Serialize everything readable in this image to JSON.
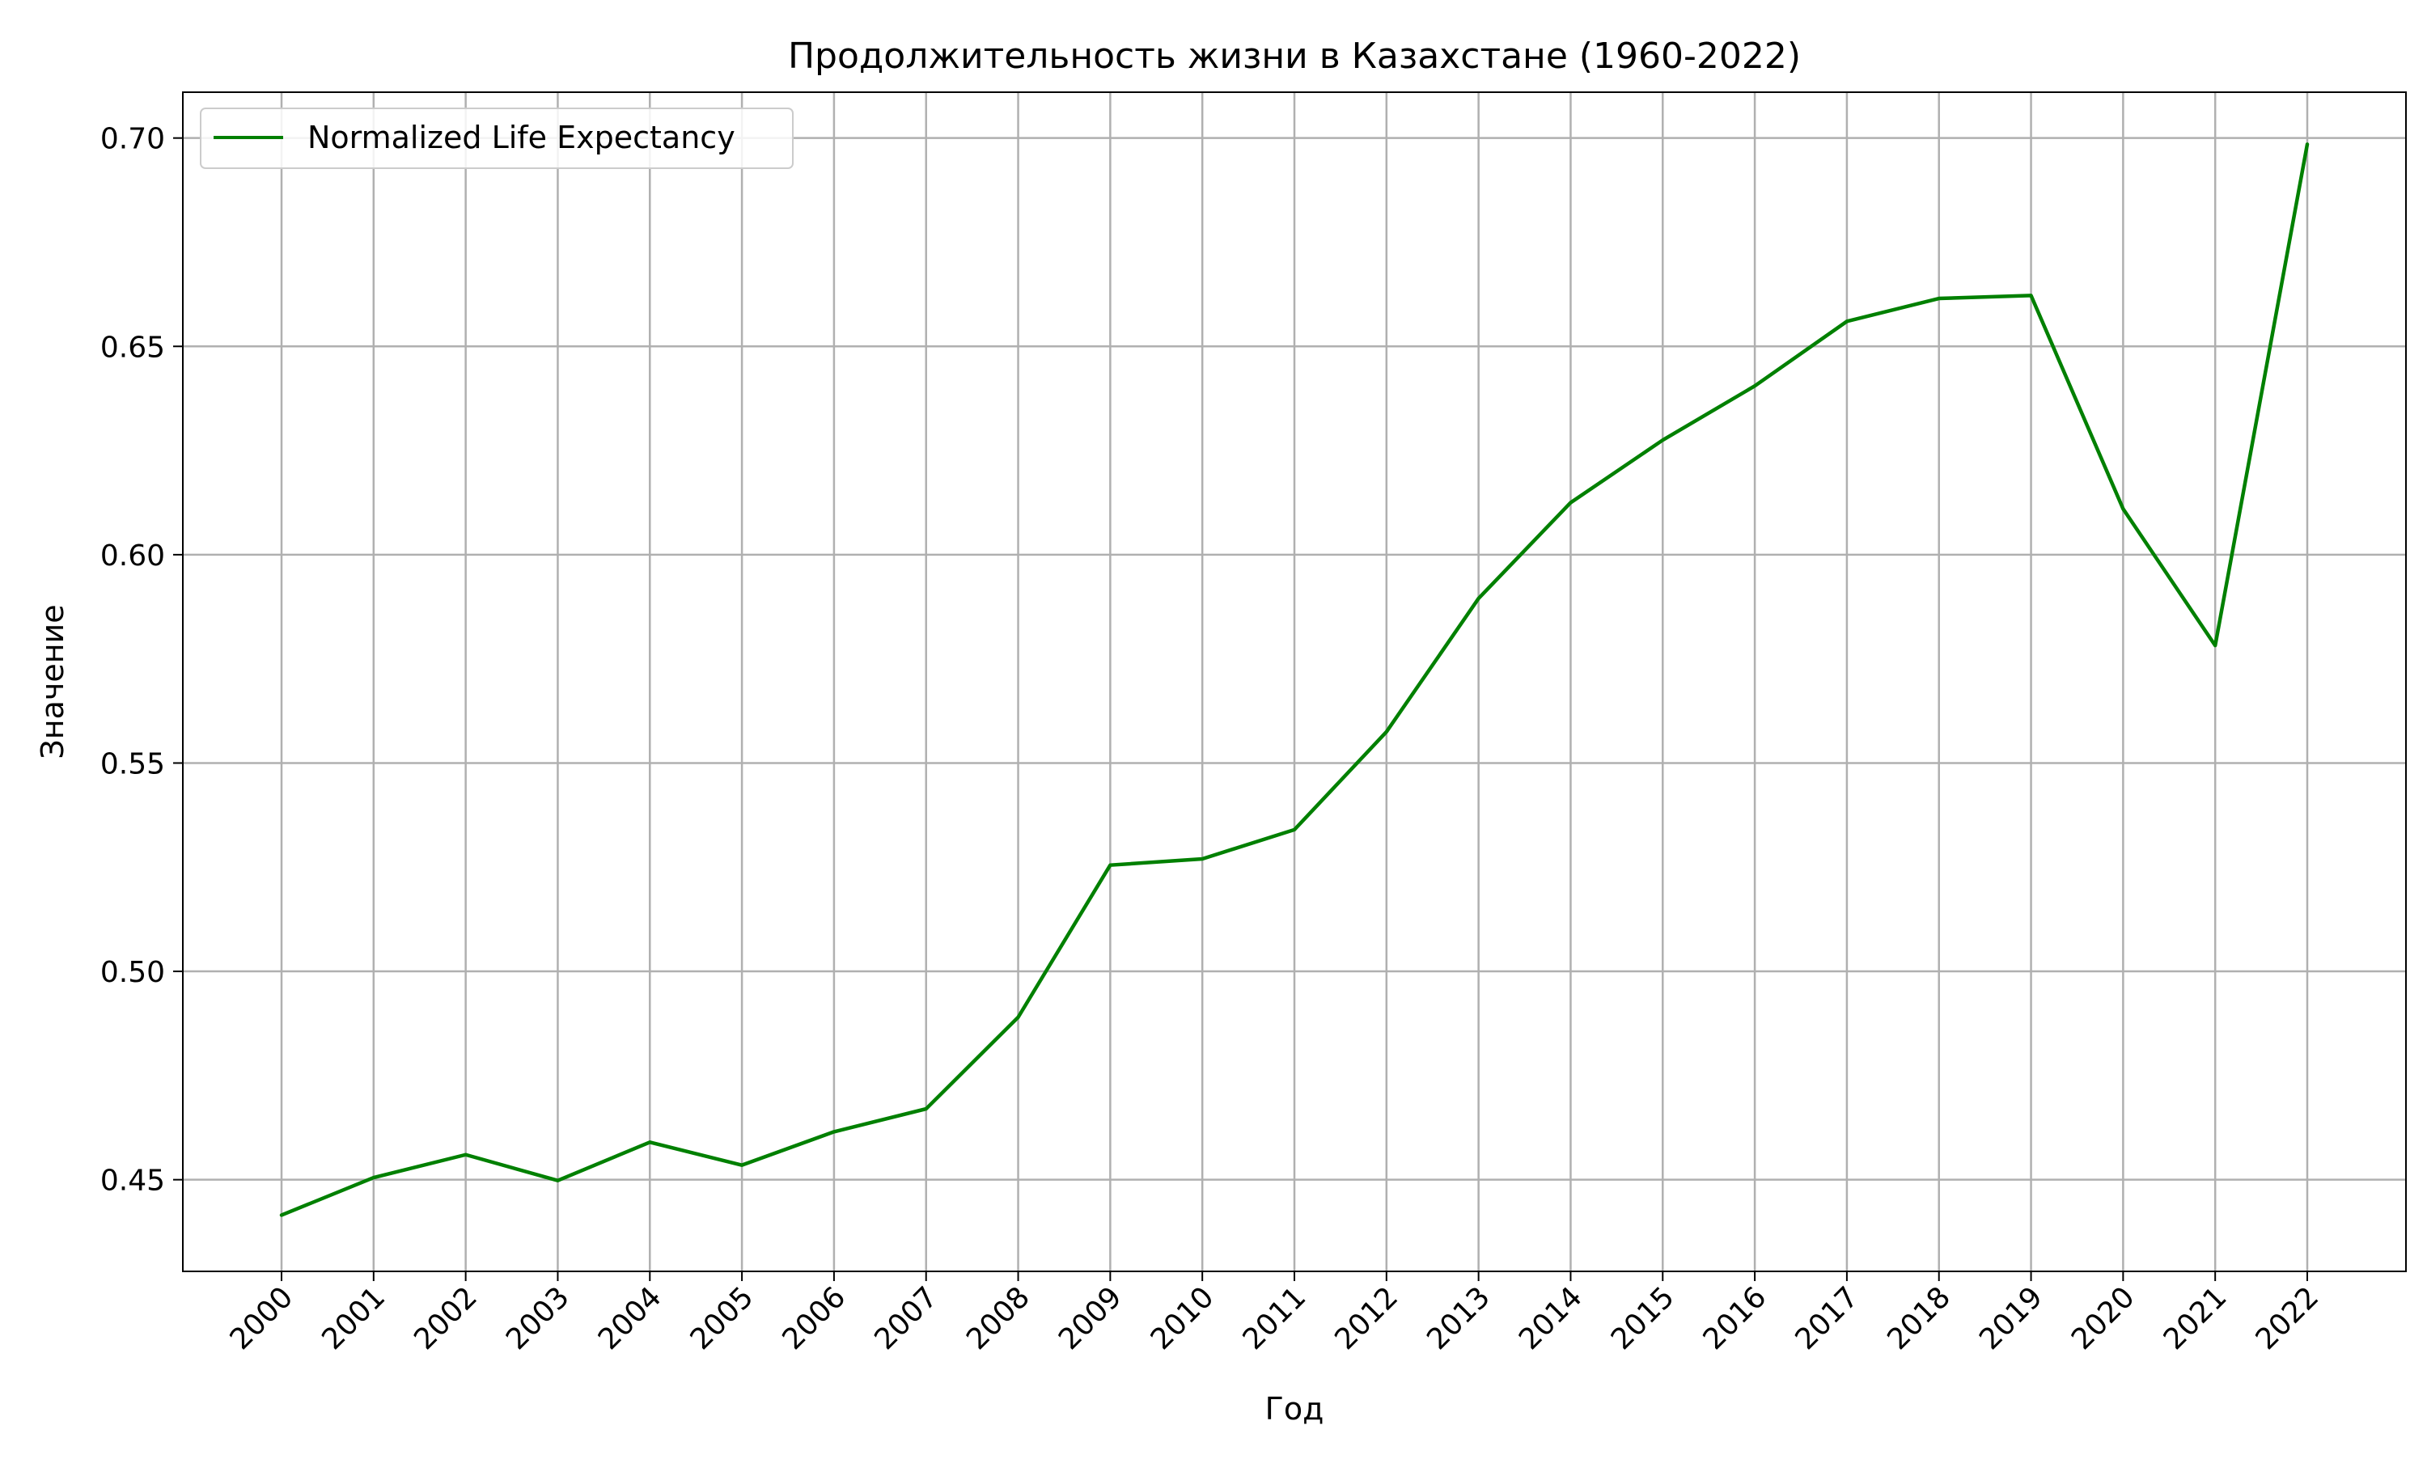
{
  "chart_data": {
    "type": "line",
    "title": "Продолжительность жизни в Казахстане (1960-2022)",
    "xlabel": "Год",
    "ylabel": "Значение",
    "x": [
      2000,
      2001,
      2002,
      2003,
      2004,
      2005,
      2006,
      2007,
      2008,
      2009,
      2010,
      2011,
      2012,
      2013,
      2014,
      2015,
      2016,
      2017,
      2018,
      2019,
      2020,
      2021,
      2022
    ],
    "xtick_labels": [
      "2000",
      "2001",
      "2002",
      "2003",
      "2004",
      "2005",
      "2006",
      "2007",
      "2008",
      "2009",
      "2010",
      "2011",
      "2012",
      "2013",
      "2014",
      "2015",
      "2016",
      "2017",
      "2018",
      "2019",
      "2020",
      "2021",
      "2022"
    ],
    "xtick_rotation_deg": 45,
    "ylim": [
      0.428,
      0.711
    ],
    "yticks": [
      0.45,
      0.5,
      0.55,
      0.6,
      0.65,
      0.7
    ],
    "ytick_labels": [
      "0.45",
      "0.50",
      "0.55",
      "0.60",
      "0.65",
      "0.70"
    ],
    "series": [
      {
        "name": "Normalized Life Expectancy",
        "color": "#008000",
        "values": [
          0.4415,
          0.4505,
          0.456,
          0.4498,
          0.459,
          0.4535,
          0.4615,
          0.467,
          0.489,
          0.5255,
          0.527,
          0.534,
          0.5575,
          0.5895,
          0.6125,
          0.6275,
          0.6405,
          0.656,
          0.6615,
          0.6622,
          0.611,
          0.5782,
          0.6985
        ]
      }
    ],
    "grid": true,
    "grid_color": "#b0b0b0",
    "legend_position": "top-left"
  }
}
